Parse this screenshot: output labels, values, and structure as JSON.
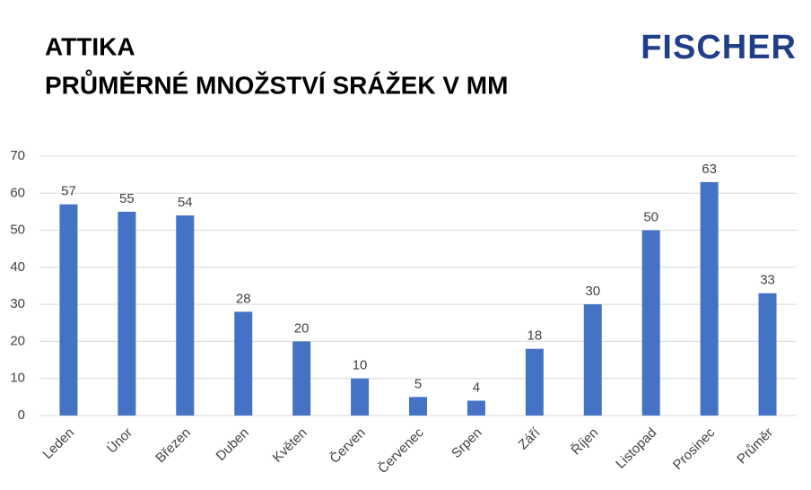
{
  "chart_data": {
    "type": "bar",
    "title": "ATTIKA",
    "subtitle": "PRŮMĚRNÉ MNOŽSTVÍ SRÁŽEK V MM",
    "logo": "FISCHER",
    "categories": [
      "Leden",
      "Únor",
      "Březen",
      "Duben",
      "Květen",
      "Červen",
      "Červenec",
      "Srpen",
      "Září",
      "Říjen",
      "Listopad",
      "Prosinec",
      "Průměr"
    ],
    "values": [
      57,
      55,
      54,
      28,
      20,
      10,
      5,
      4,
      18,
      30,
      50,
      63,
      33
    ],
    "color": "#4472c4",
    "ylim": [
      0,
      70
    ],
    "yticks": [
      0,
      10,
      20,
      30,
      40,
      50,
      60,
      70
    ],
    "grid": true
  }
}
